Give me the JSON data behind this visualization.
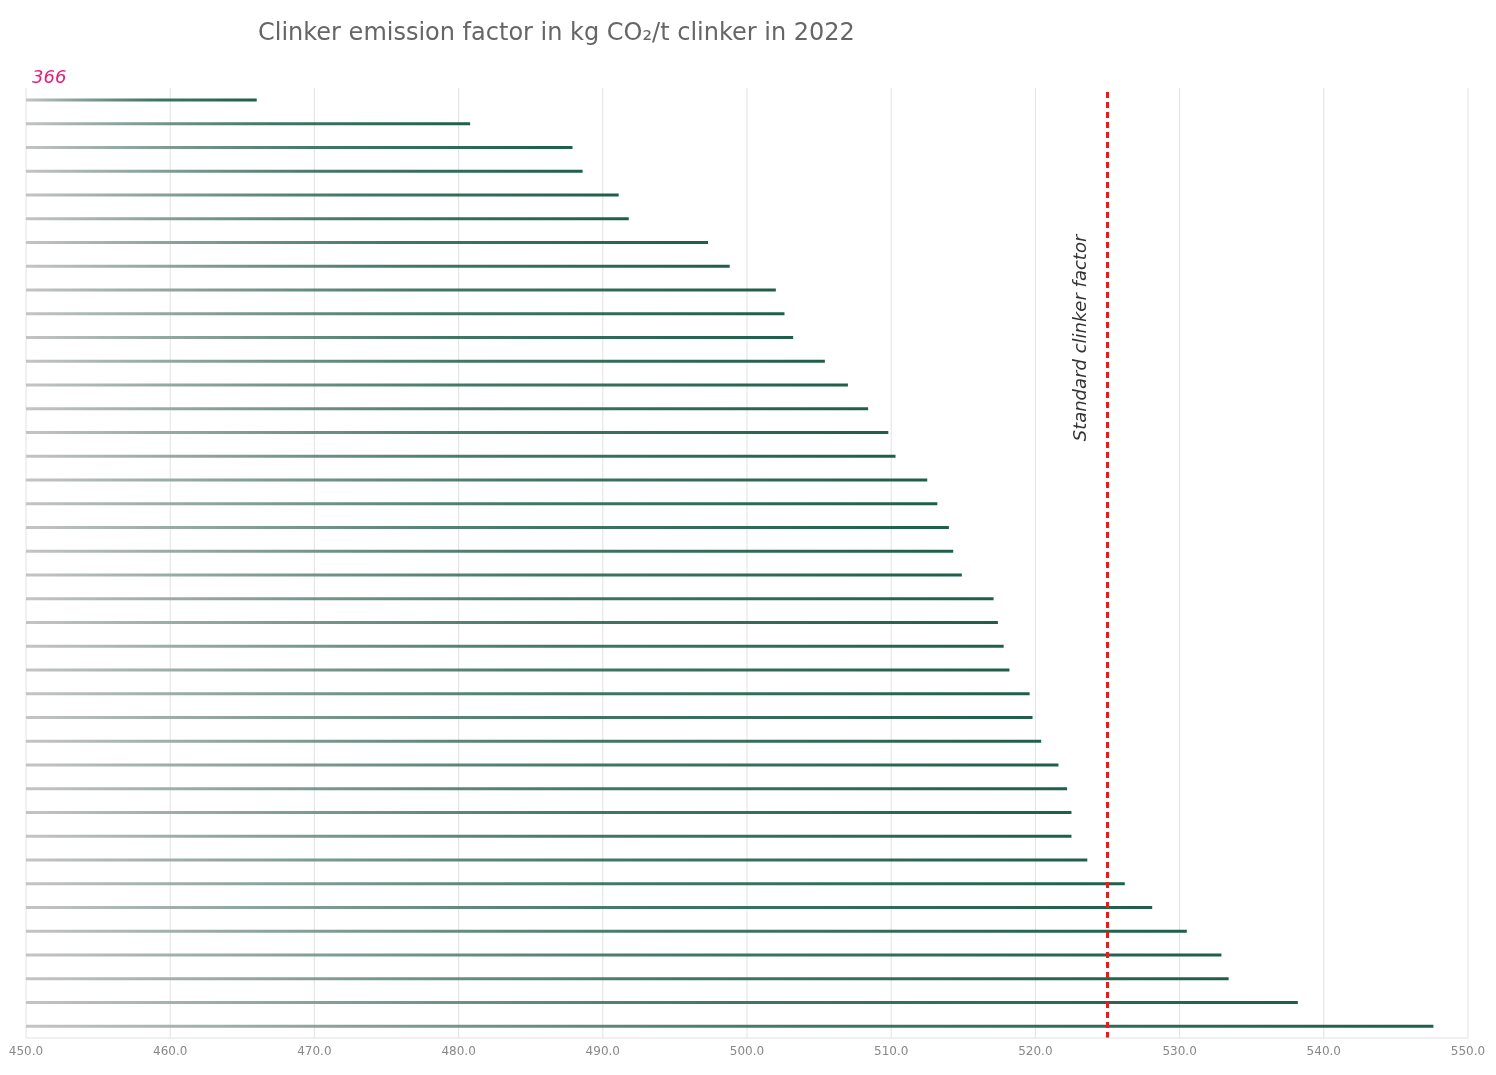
{
  "chart_data": {
    "type": "bar",
    "orientation": "horizontal",
    "title": "Clinker emission factor in kg CO₂/t clinker in 2022",
    "categories": [
      null,
      null,
      null,
      null,
      null,
      null,
      null,
      null,
      null,
      null,
      null,
      null,
      null,
      null,
      null,
      null,
      null,
      null,
      null,
      null,
      null,
      null,
      null,
      null,
      null,
      null,
      null,
      null,
      null,
      null,
      null,
      null,
      null,
      null,
      null,
      null,
      null,
      null,
      null,
      null
    ],
    "values": [
      466.0,
      480.8,
      487.9,
      488.6,
      491.1,
      491.8,
      497.3,
      498.8,
      502.0,
      502.6,
      503.2,
      505.4,
      507.0,
      508.4,
      509.8,
      510.3,
      512.5,
      513.2,
      514.0,
      514.3,
      514.9,
      517.1,
      517.4,
      517.8,
      518.2,
      519.6,
      519.8,
      520.4,
      521.6,
      522.2,
      522.5,
      522.5,
      523.6,
      526.2,
      528.1,
      530.5,
      532.9,
      533.4,
      538.2,
      547.6
    ],
    "color": "#1f5f47",
    "xlim": [
      450,
      550
    ],
    "xticks": [
      {
        "value": 450,
        "label": "450.0"
      },
      {
        "value": 460,
        "label": "460.0"
      },
      {
        "value": 470,
        "label": "470.0"
      },
      {
        "value": 480,
        "label": "480.0"
      },
      {
        "value": 490,
        "label": "490.0"
      },
      {
        "value": 500,
        "label": "500.0"
      },
      {
        "value": 510,
        "label": "510.0"
      },
      {
        "value": 520,
        "label": "520.0"
      },
      {
        "value": 530,
        "label": "530.0"
      },
      {
        "value": 540,
        "label": "540.0"
      },
      {
        "value": 550,
        "label": "550.0"
      }
    ],
    "grid": "x",
    "ref_lines": [
      {
        "axis": "x",
        "value": 525,
        "label": "Standard clinker factor",
        "color": "#e02020",
        "line_style": "dashed"
      }
    ],
    "annotations": [
      "366"
    ],
    "legend": false
  }
}
